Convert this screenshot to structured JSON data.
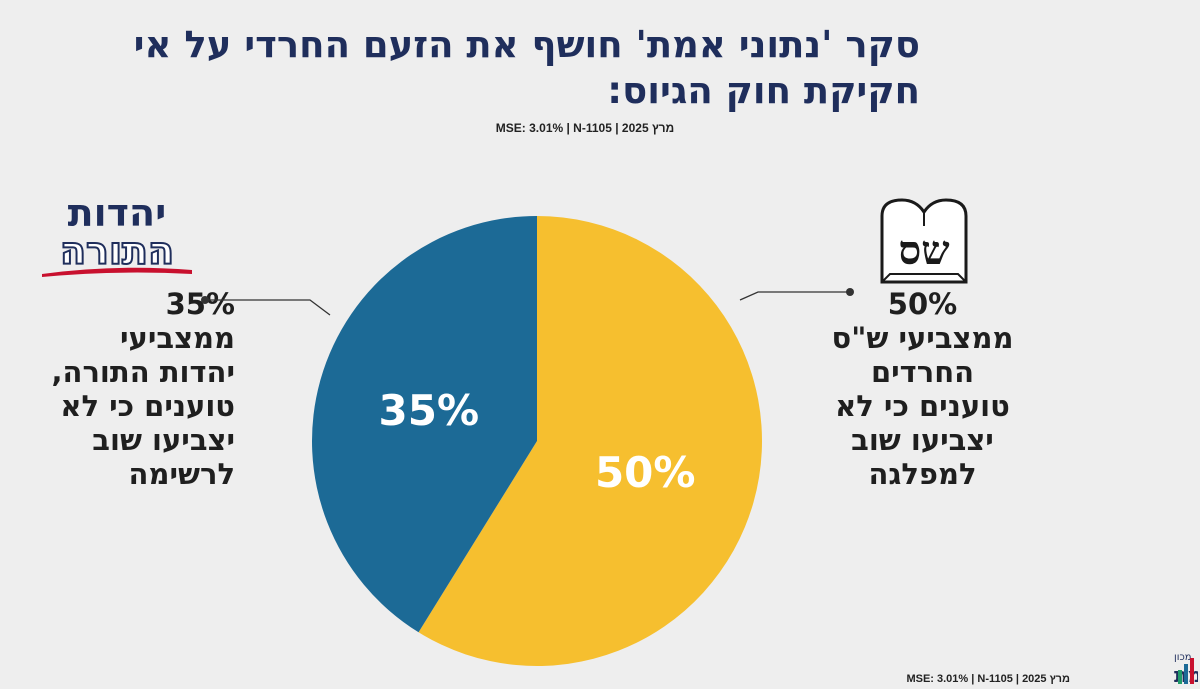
{
  "title": "סקר 'נתוני אמת' חושף את הזעם החרדי על אי חקיקת חוק הגיוס:",
  "meta_top": "מרץ 2025 | MSE: 3.01% | N-1105",
  "meta_bottom": "מרץ 2025 | MSE: 3.01% | N-1105",
  "colors": {
    "title": "#1f2e5c",
    "utj": "#1c6a96",
    "shas": "#f6bf2f",
    "background": "#eeeeee"
  },
  "logos": {
    "utj": {
      "line1": "יהדות",
      "line2": "התורה"
    },
    "shas": {
      "text": "שס"
    },
    "brand": {
      "small": "מכון",
      "name": "נתוני אמת"
    }
  },
  "callouts": {
    "utj": {
      "pct": "35%",
      "lines": [
        "ממצביעי",
        "יהדות התורה,",
        "טוענים כי לא",
        "יצביעו שוב",
        "לרשימה"
      ]
    },
    "shas": {
      "pct": "50%",
      "lines": [
        "ממצביעי ש\"ס",
        "החרדים",
        "טוענים כי לא",
        "יצביעו שוב",
        "למפלגה"
      ]
    }
  },
  "chart_data": {
    "type": "pie",
    "slices": [
      {
        "label": "50%",
        "value": 50,
        "color": "#f6bf2f"
      },
      {
        "label": "35%",
        "value": 35,
        "color": "#1c6a96"
      }
    ]
  }
}
